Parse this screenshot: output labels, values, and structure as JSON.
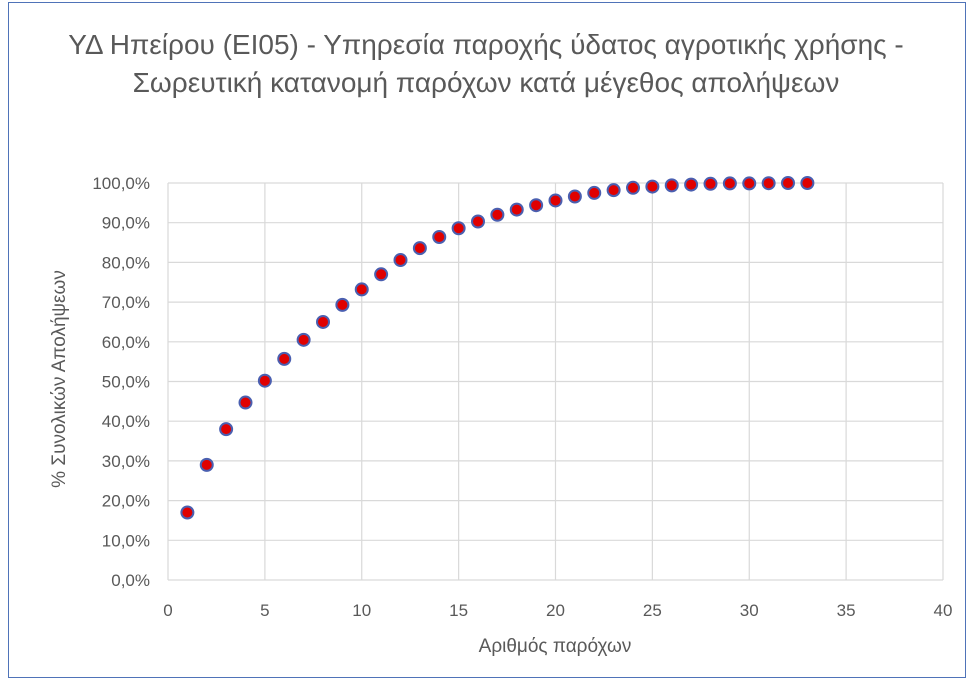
{
  "chart_data": {
    "type": "scatter",
    "title": "ΥΔ Ηπείρου (EI05) - Υπηρεσία παροχής ύδατος αγροτικής χρήσης - Σωρευτική κατανομή παρόχων κατά μέγεθος απολήψεων",
    "xlabel": "Αριθμός παρόχων",
    "ylabel": "% Συνολικών Απολήψεων",
    "xlim": [
      0,
      40
    ],
    "ylim": [
      0,
      100
    ],
    "xticks": [
      "0",
      "5",
      "10",
      "15",
      "20",
      "25",
      "30",
      "35",
      "40"
    ],
    "yticks": [
      "0,0%",
      "10,0%",
      "20,0%",
      "30,0%",
      "40,0%",
      "50,0%",
      "60,0%",
      "70,0%",
      "80,0%",
      "90,0%",
      "100,0%"
    ],
    "grid": true,
    "marker_fill": "#e00000",
    "marker_edge": "#4a5fb0",
    "series": [
      {
        "x": [
          1,
          2,
          3,
          4,
          5,
          6,
          7,
          8,
          9,
          10,
          11,
          12,
          13,
          14,
          15,
          16,
          17,
          18,
          19,
          20,
          21,
          22,
          23,
          24,
          25,
          26,
          27,
          28,
          29,
          30,
          31,
          32,
          33
        ],
        "values": [
          17.0,
          29.0,
          38.0,
          44.7,
          50.2,
          55.7,
          60.5,
          65.0,
          69.3,
          73.2,
          77.0,
          80.6,
          83.6,
          86.4,
          88.6,
          90.3,
          92.0,
          93.3,
          94.4,
          95.6,
          96.6,
          97.5,
          98.2,
          98.8,
          99.1,
          99.4,
          99.6,
          99.8,
          99.9,
          99.9,
          99.95,
          100.0,
          100.0
        ]
      }
    ]
  }
}
